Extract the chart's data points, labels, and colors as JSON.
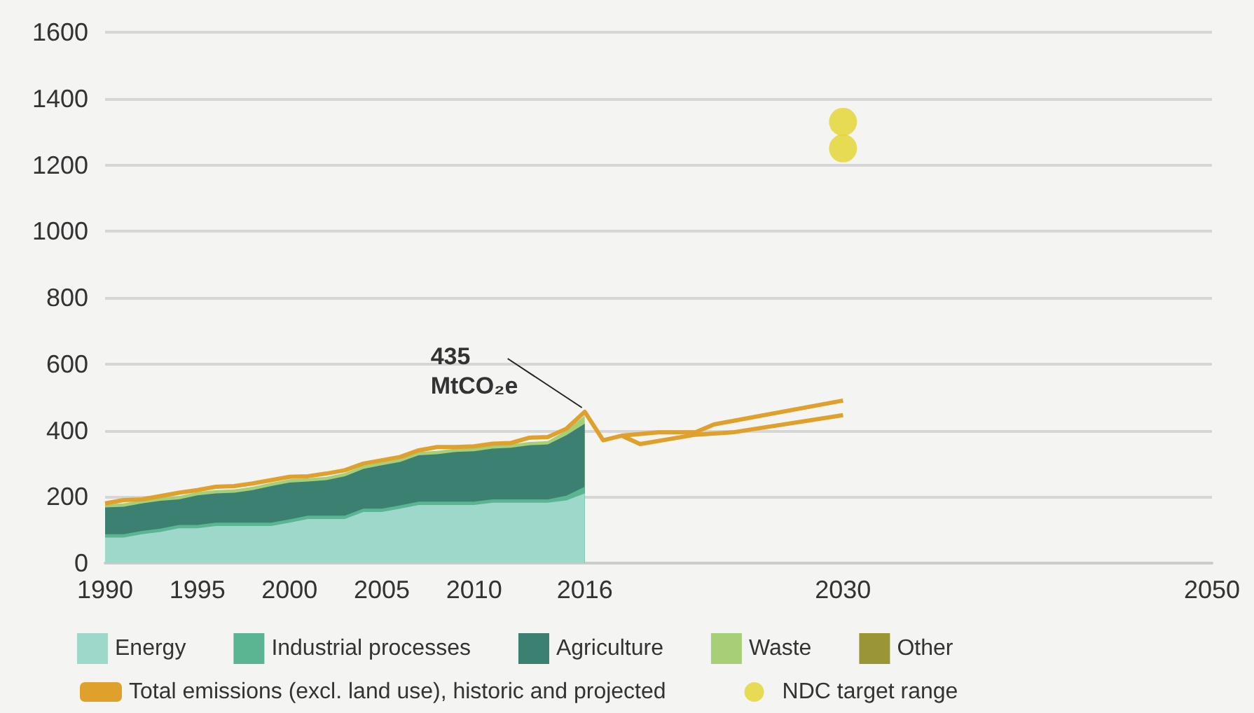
{
  "chart_data": {
    "type": "area",
    "stacked": true,
    "x": [
      1990,
      1991,
      1992,
      1993,
      1994,
      1995,
      1996,
      1997,
      1998,
      1999,
      2000,
      2001,
      2002,
      2003,
      2004,
      2005,
      2006,
      2007,
      2008,
      2009,
      2010,
      2011,
      2012,
      2013,
      2014,
      2015,
      2016
    ],
    "series": [
      {
        "name": "Energy",
        "color": "#9dd8cb",
        "values": [
          77,
          77,
          87,
          94,
          105,
          105,
          112,
          112,
          112,
          112,
          122,
          133,
          133,
          133,
          154,
          154,
          164,
          175,
          175,
          175,
          175,
          182,
          182,
          182,
          182,
          189,
          210
        ]
      },
      {
        "name": "Industrial processes",
        "color": "#5bb592",
        "values": [
          10,
          10,
          10,
          10,
          10,
          10,
          10,
          10,
          10,
          10,
          10,
          10,
          10,
          10,
          10,
          10,
          10,
          10,
          10,
          10,
          10,
          10,
          10,
          10,
          10,
          14,
          20
        ]
      },
      {
        "name": "Agriculture",
        "color": "#3b8070",
        "values": [
          81,
          83,
          83,
          84,
          77,
          89,
          88,
          90,
          98,
          110,
          111,
          103,
          107,
          119,
          120,
          131,
          131,
          140,
          143,
          150,
          152,
          153,
          156,
          163,
          166,
          182,
          190
        ]
      },
      {
        "name": "Waste",
        "color": "#a7cf78",
        "values": [
          10,
          10,
          10,
          10,
          10,
          10,
          10,
          10,
          10,
          10,
          10,
          10,
          10,
          10,
          10,
          10,
          10,
          10,
          10,
          10,
          10,
          10,
          10,
          10,
          10,
          15,
          25
        ]
      },
      {
        "name": "Other",
        "color": "#9a9537",
        "values": [
          null,
          null,
          null,
          null,
          null,
          null,
          null,
          null,
          null,
          null,
          null,
          null,
          null,
          null,
          null,
          null,
          null,
          null,
          null,
          null,
          null,
          null,
          null,
          null,
          null,
          null,
          null
        ]
      },
      {
        "name": "Total emissions (excl. land use), historic and projected",
        "type": "line",
        "color": "#e0a02c",
        "x": [
          1990,
          1991,
          1992,
          1993,
          1994,
          1995,
          1996,
          1997,
          1998,
          1999,
          2000,
          2001,
          2002,
          2003,
          2004,
          2005,
          2006,
          2007,
          2008,
          2009,
          2010,
          2011,
          2012,
          2013,
          2014,
          2015,
          2016,
          2017,
          2018,
          2019,
          2022,
          2024,
          2030
        ],
        "values": [
          180,
          190,
          192,
          202,
          212,
          220,
          230,
          232,
          240,
          250,
          260,
          262,
          270,
          280,
          300,
          310,
          320,
          340,
          350,
          350,
          352,
          360,
          362,
          378,
          380,
          405,
          456,
          370,
          384,
          359,
          387,
          394,
          446
        ]
      },
      {
        "type": "line",
        "color": "#e0a02c",
        "x": [
          2018,
          2020,
          2022,
          2023,
          2030
        ],
        "values": [
          384,
          394,
          394,
          418,
          490
        ]
      },
      {
        "name": "NDC target range",
        "type": "scatter",
        "color": "#e3d52a",
        "x": [
          2030,
          2030
        ],
        "values": [
          1330,
          1250
        ]
      }
    ],
    "annotations": [
      {
        "text": "435 MtCO₂e",
        "x": 2016,
        "y": 456
      }
    ],
    "xlim": [
      1990,
      2050
    ],
    "xticks": [
      1990,
      1995,
      2000,
      2005,
      2010,
      2016,
      2030,
      2050
    ],
    "ylim": [
      0,
      1600
    ],
    "yticks": [
      0,
      200,
      400,
      600,
      800,
      1000,
      1200,
      1400,
      1600
    ],
    "grid": "y",
    "legend": "bottom",
    "line_style": "solid"
  }
}
